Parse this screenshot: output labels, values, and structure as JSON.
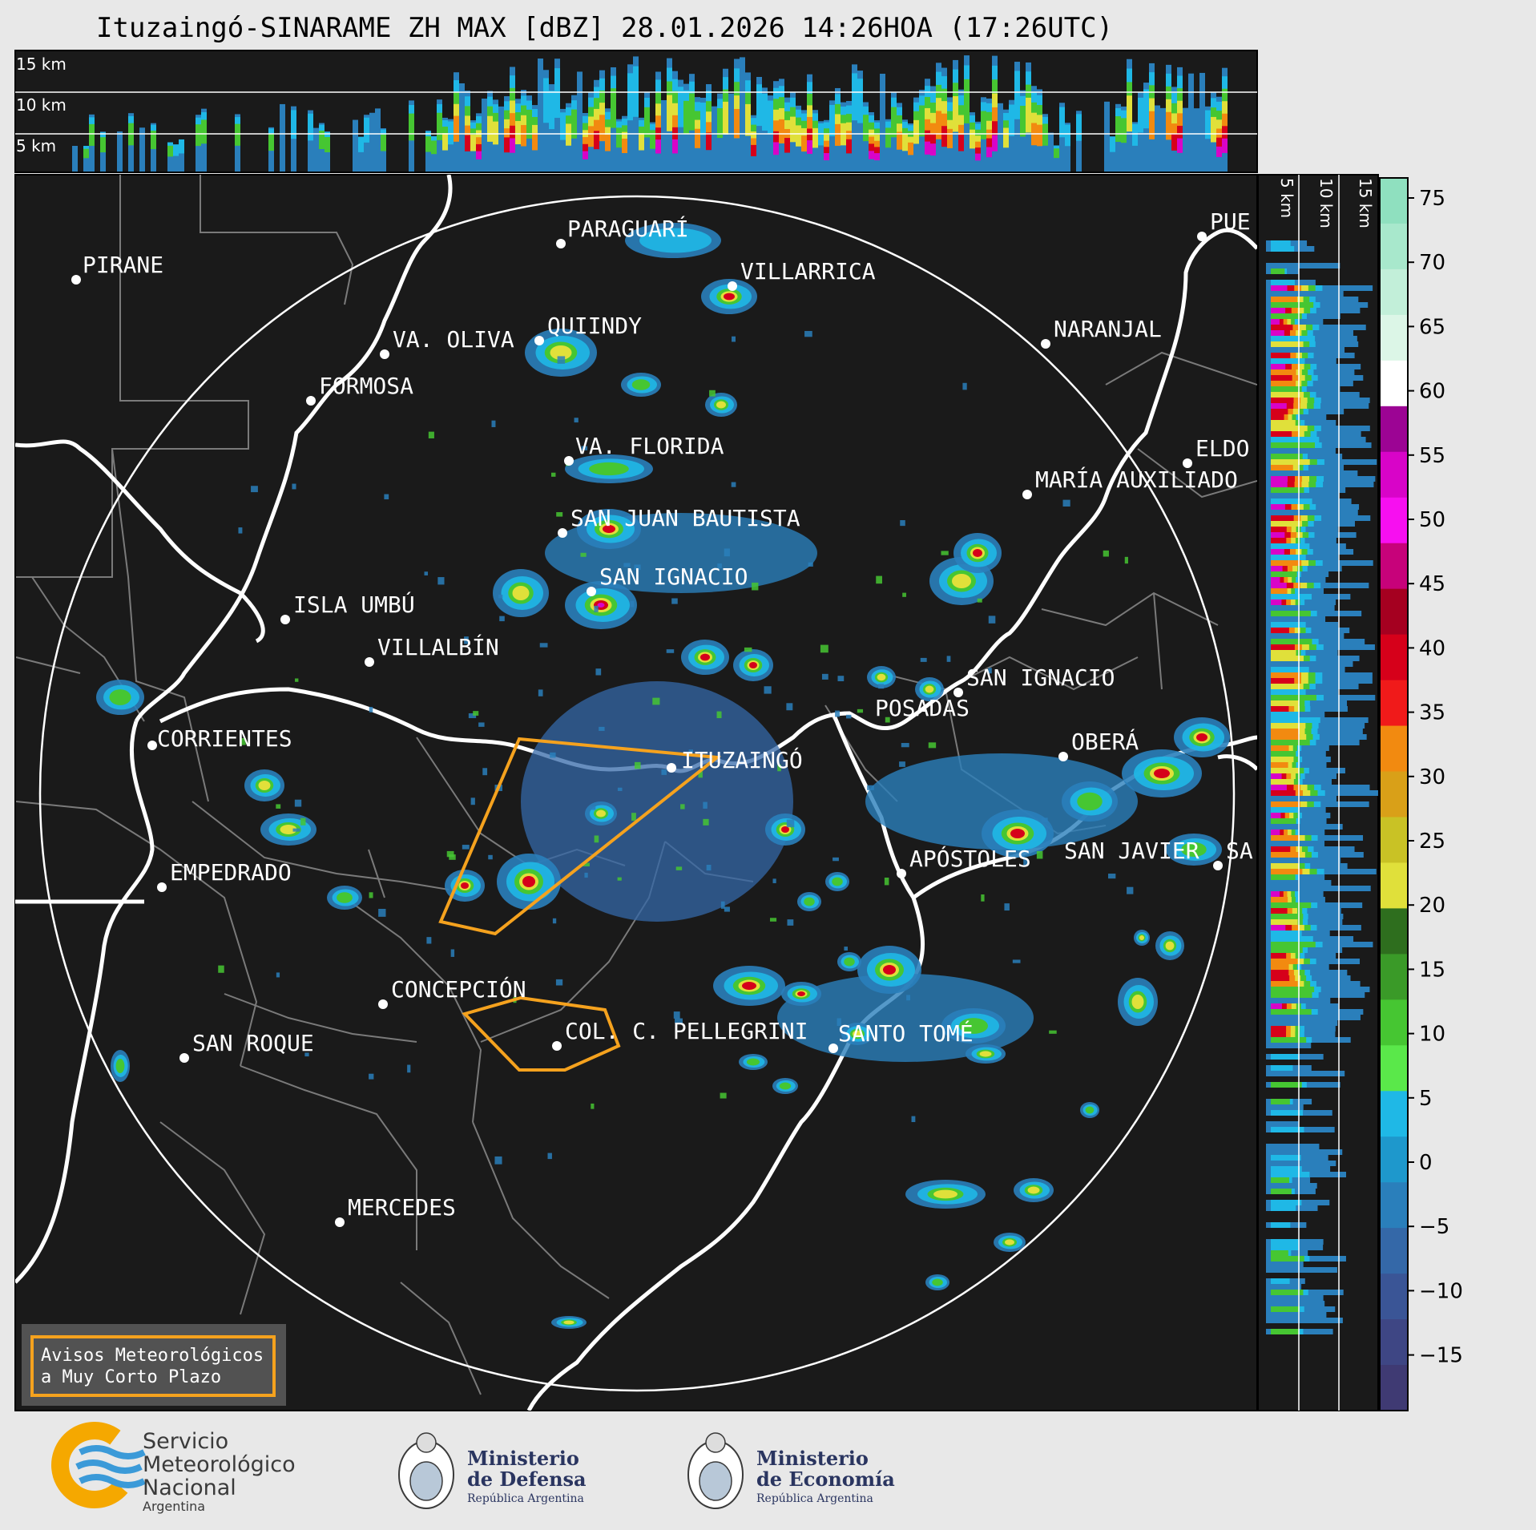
{
  "title": "Ituzaingó-SINARAME ZH MAX [dBZ] 28.01.2026 14:26HOA (17:26UTC)",
  "top_panel": {
    "altitude_labels": [
      "15 km",
      "10 km",
      "5 km"
    ]
  },
  "side_panel": {
    "altitude_labels": [
      "5 km",
      "10 km",
      "15 km"
    ]
  },
  "cities": [
    {
      "name": "PARAGUARÍ"
    },
    {
      "name": "VILLARRICA"
    },
    {
      "name": "PIRANE"
    },
    {
      "name": "QUIINDY"
    },
    {
      "name": "VA. OLIVA"
    },
    {
      "name": "FORMOSA"
    },
    {
      "name": "NARANJAL"
    },
    {
      "name": "PUE"
    },
    {
      "name": "VA. FLORIDA"
    },
    {
      "name": "ELDO"
    },
    {
      "name": "MARÍA AUXILIADO"
    },
    {
      "name": "SAN JUAN BAUTISTA"
    },
    {
      "name": "SAN IGNACIO"
    },
    {
      "name": "ISLA UMBÚ"
    },
    {
      "name": "VILLALBÍN"
    },
    {
      "name": "SAN IGNACIO"
    },
    {
      "name": "POSADAS"
    },
    {
      "name": "CORRIENTES"
    },
    {
      "name": "ITUZAINGÓ"
    },
    {
      "name": "OBERÁ"
    },
    {
      "name": "EMPEDRADO"
    },
    {
      "name": "APÓSTOLES"
    },
    {
      "name": "SAN JAVIER"
    },
    {
      "name": "SA"
    },
    {
      "name": "CONCEPCIÓN"
    },
    {
      "name": "COL. C. PELLEGRINI"
    },
    {
      "name": "SANTO TOMÉ"
    },
    {
      "name": "SAN ROQUE"
    },
    {
      "name": "MERCEDES"
    }
  ],
  "colorbar": {
    "unit": "dBZ",
    "ticks": [
      "75",
      "70",
      "65",
      "60",
      "55",
      "50",
      "45",
      "40",
      "35",
      "30",
      "25",
      "20",
      "15",
      "10",
      "5",
      "0",
      "−5",
      "−10",
      "−15"
    ],
    "colors": [
      "#8fe0bf",
      "#a8e8cc",
      "#c2efd9",
      "#dcf6e7",
      "#ffffff",
      "#9c0494",
      "#d804c8",
      "#f70ff0",
      "#c7027a",
      "#a50020",
      "#d6001a",
      "#f01a1a",
      "#f28a10",
      "#d9a018",
      "#c9c225",
      "#e0e03a",
      "#2e6e1e",
      "#3a9a28",
      "#46c632",
      "#5ae84a",
      "#1fb8e6",
      "#1e98cc",
      "#2a7fbb",
      "#3468a8",
      "#3a5596",
      "#3e4684",
      "#3f3a73"
    ]
  },
  "warning_legend": {
    "line1": "Avisos Meteorológicos",
    "line2": "a Muy Corto Plazo"
  },
  "logos": {
    "smn": {
      "line1": "Servicio",
      "line2": "Meteorológico",
      "line3": "Nacional",
      "line4": "Argentina"
    },
    "defensa": {
      "line1": "Ministerio",
      "line2": "de Defensa",
      "line3": "República Argentina"
    },
    "economia": {
      "line1": "Ministerio",
      "line2": "de Economía",
      "line3": "República Argentina"
    }
  }
}
